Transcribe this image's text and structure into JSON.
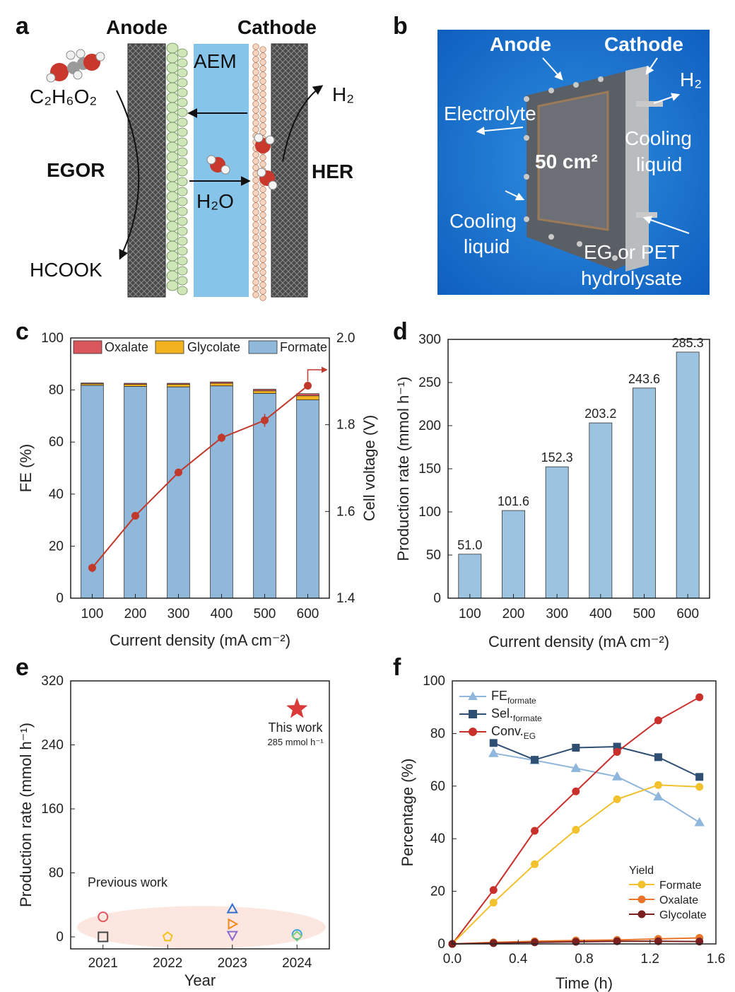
{
  "panel_labels": {
    "a": "a",
    "b": "b",
    "c": "c",
    "d": "d",
    "e": "e",
    "f": "f"
  },
  "panel_a": {
    "anode": "Anode",
    "cathode": "Cathode",
    "membrane": "AEM",
    "reactant": "C₂H₆O₂",
    "product": "HCOOK",
    "left_reaction": "EGOR",
    "right_reaction": "HER",
    "water": "H₂O",
    "gas": "H₂"
  },
  "panel_b": {
    "anode": "Anode",
    "cathode": "Cathode",
    "h2": "H₂",
    "electrolyte": "Electrolyte",
    "area": "50 cm²",
    "cooling_right_1": "Cooling",
    "cooling_right_2": "liquid",
    "cooling_left_1": "Cooling",
    "cooling_left_2": "liquid",
    "feed_1": "EG or PET",
    "feed_2": "hydrolysate"
  },
  "chart_data": [
    {
      "panel": "c",
      "type": "bar",
      "stacked": true,
      "categories": [
        "100",
        "200",
        "300",
        "400",
        "500",
        "600"
      ],
      "xlabel": "Current density (mA cm⁻²)",
      "ylabel": "FE (%)",
      "ylim": [
        0,
        100
      ],
      "yticks": [
        "0",
        "20",
        "40",
        "60",
        "80",
        "100"
      ],
      "y2label": "Cell voltage (V)",
      "y2lim": [
        1.4,
        2.0
      ],
      "y2ticks": [
        "1.4",
        "1.6",
        "1.8",
        "2.0"
      ],
      "legend": [
        "Oxalate",
        "Glycolate",
        "Formate"
      ],
      "series": [
        {
          "name": "Formate",
          "color": "#8fb8db",
          "values": [
            81.8,
            81.4,
            81.2,
            81.6,
            78.7,
            76.2
          ]
        },
        {
          "name": "Glycolate",
          "color": "#f3b21f",
          "values": [
            0.6,
            0.8,
            1.0,
            1.0,
            1.0,
            1.6
          ]
        },
        {
          "name": "Oxalate",
          "color": "#d9565c",
          "values": [
            0.3,
            0.4,
            0.4,
            0.5,
            0.6,
            0.8
          ]
        }
      ],
      "voltage": {
        "color": "#c0392b",
        "values": [
          1.47,
          1.59,
          1.69,
          1.77,
          1.81,
          1.89
        ],
        "err": [
          0.01,
          0.004,
          0.006,
          0.01,
          0.015,
          0.008
        ]
      }
    },
    {
      "panel": "d",
      "type": "bar",
      "categories": [
        "100",
        "200",
        "300",
        "400",
        "500",
        "600"
      ],
      "values": [
        51.0,
        101.6,
        152.3,
        203.2,
        243.6,
        285.3
      ],
      "labels": [
        "51.0",
        "101.6",
        "152.3",
        "203.2",
        "243.6",
        "285.3"
      ],
      "color": "#9cc3e0",
      "xlabel": "Current density (mA cm⁻²)",
      "ylabel": "Production rate (mmol h⁻¹)",
      "ylim": [
        0,
        300
      ],
      "yticks": [
        "0",
        "50",
        "100",
        "150",
        "200",
        "250",
        "300"
      ]
    },
    {
      "panel": "e",
      "type": "scatter",
      "xlabel": "Year",
      "ylabel": "Production rate (mmol h⁻¹)",
      "xlim": [
        2020.5,
        2024.5
      ],
      "xticks": [
        "2021",
        "2022",
        "2023",
        "2024"
      ],
      "ylim": [
        -15,
        320
      ],
      "yticks": [
        "0",
        "80",
        "160",
        "240",
        "320"
      ],
      "previous_label": "Previous work",
      "this_work_label": "This work",
      "this_work_value_label": "285 mmol h⁻¹",
      "points": [
        {
          "x": 2021,
          "y": 25,
          "marker": "circle",
          "color": "#e0525c"
        },
        {
          "x": 2021,
          "y": 0,
          "marker": "square",
          "color": "#444444"
        },
        {
          "x": 2022,
          "y": 0,
          "marker": "pentagon",
          "color": "#f3c21a"
        },
        {
          "x": 2023,
          "y": 35,
          "marker": "triangle-up",
          "color": "#2e6fd0"
        },
        {
          "x": 2023,
          "y": 16,
          "marker": "triangle-right",
          "color": "#f08a1c"
        },
        {
          "x": 2023,
          "y": 2,
          "marker": "triangle-down",
          "color": "#8a6ccf"
        },
        {
          "x": 2024,
          "y": 3,
          "marker": "circle",
          "color": "#3aa3e0"
        },
        {
          "x": 2024,
          "y": 1,
          "marker": "diamond",
          "color": "#7fcf7a"
        },
        {
          "x": 2024,
          "y": 285,
          "marker": "star",
          "color": "#d93a3a"
        }
      ]
    },
    {
      "panel": "f",
      "type": "line",
      "xlabel": "Time (h)",
      "ylabel": "Percentage (%)",
      "xlim": [
        0,
        1.6
      ],
      "xticks": [
        "0.0",
        "0.4",
        "0.8",
        "1.2",
        "1.6"
      ],
      "ylim": [
        0,
        100
      ],
      "yticks": [
        "0",
        "20",
        "40",
        "60",
        "80",
        "100"
      ],
      "yield_title": "Yield",
      "series": [
        {
          "name": "FE",
          "sub": "formate",
          "marker": "triangle",
          "color": "#8fb6dc",
          "x": [
            0.25,
            0.5,
            0.75,
            1.0,
            1.25,
            1.5
          ],
          "y": [
            72.5,
            69.8,
            66.8,
            63.6,
            56.0,
            46.2
          ]
        },
        {
          "name": "Sel.",
          "sub": "formate",
          "marker": "square",
          "color": "#2f4f73",
          "x": [
            0.25,
            0.5,
            0.75,
            1.0,
            1.25,
            1.5
          ],
          "y": [
            76.4,
            70.0,
            74.6,
            75.0,
            71.0,
            63.5
          ]
        },
        {
          "name": "Conv.",
          "sub": "EG",
          "marker": "circle",
          "color": "#c9302c",
          "x": [
            0,
            0.25,
            0.5,
            0.75,
            1.0,
            1.25,
            1.5
          ],
          "y": [
            0,
            20.5,
            43.0,
            58.0,
            73.0,
            85.0,
            93.8
          ]
        },
        {
          "name": "Formate",
          "marker": "circle",
          "color": "#f2c12e",
          "x": [
            0,
            0.25,
            0.5,
            0.75,
            1.0,
            1.25,
            1.5
          ],
          "y": [
            0,
            15.7,
            30.3,
            43.4,
            55.0,
            60.4,
            59.7
          ]
        },
        {
          "name": "Oxalate",
          "marker": "circle",
          "color": "#e8762a",
          "x": [
            0,
            0.25,
            0.5,
            0.75,
            1.0,
            1.25,
            1.5
          ],
          "y": [
            0,
            0.6,
            1.0,
            1.3,
            1.5,
            1.9,
            2.3
          ]
        },
        {
          "name": "Glycolate",
          "marker": "circle",
          "color": "#7a2020",
          "x": [
            0,
            0.25,
            0.5,
            0.75,
            1.0,
            1.25,
            1.5
          ],
          "y": [
            0,
            0.3,
            0.6,
            0.8,
            1.0,
            1.0,
            0.9
          ]
        }
      ]
    }
  ]
}
